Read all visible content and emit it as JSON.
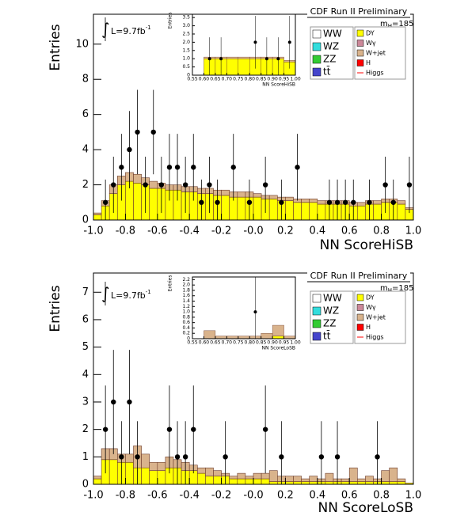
{
  "chart_data": [
    {
      "type": "stacked-histogram",
      "title": "CDF Run II Preliminary",
      "xlabel": "NN ScoreHiSB",
      "ylabel": "Entries",
      "mass_label": {
        "main": "m",
        "sub": "H",
        "rest": "=185"
      },
      "lumi": {
        "symbol": "∫",
        "main": "L=9.7fb",
        "sup": "-1"
      },
      "bins": [
        -1,
        -0.95,
        -0.9,
        -0.85,
        -0.8,
        -0.75,
        -0.7,
        -0.65,
        -0.6,
        -0.55,
        -0.5,
        -0.45,
        -0.4,
        -0.35,
        -0.3,
        -0.25,
        -0.2,
        -0.15,
        -0.1,
        -0.05,
        0,
        0.05,
        0.1,
        0.15,
        0.2,
        0.25,
        0.3,
        0.35,
        0.4,
        0.45,
        0.5,
        0.55,
        0.6,
        0.65,
        0.7,
        0.75,
        0.8,
        0.85,
        0.9,
        0.95,
        1
      ],
      "series": [
        {
          "color": "#ffff00",
          "values": [
            0.3,
            0.8,
            1.5,
            2.0,
            2.2,
            2.1,
            2.0,
            1.8,
            1.8,
            1.7,
            1.7,
            1.6,
            1.6,
            1.5,
            1.5,
            1.4,
            1.4,
            1.3,
            1.3,
            1.3,
            1.3,
            1.2,
            1.2,
            1.1,
            1.1,
            1.0,
            1.0,
            1.0,
            0.9,
            0.9,
            0.9,
            0.9,
            0.8,
            0.8,
            0.9,
            0.9,
            1.0,
            1.0,
            0.9,
            0.6
          ]
        },
        {
          "color": "#d9b38c",
          "values": [
            0.1,
            0.3,
            0.5,
            0.5,
            0.5,
            0.5,
            0.4,
            0.4,
            0.3,
            0.3,
            0.3,
            0.3,
            0.3,
            0.3,
            0.3,
            0.3,
            0.3,
            0.3,
            0.3,
            0.3,
            0.2,
            0.2,
            0.2,
            0.2,
            0.2,
            0.2,
            0.2,
            0.2,
            0.2,
            0.2,
            0.2,
            0.2,
            0.2,
            0.2,
            0.2,
            0.2,
            0.2,
            0.2,
            0.2,
            0.1
          ]
        }
      ],
      "points": {
        "x": [
          -0.925,
          -0.875,
          -0.825,
          -0.775,
          -0.725,
          -0.675,
          -0.625,
          -0.575,
          -0.525,
          -0.475,
          -0.425,
          -0.375,
          -0.325,
          -0.275,
          -0.225,
          -0.125,
          -0.025,
          0.075,
          0.175,
          0.275,
          0.475,
          0.525,
          0.575,
          0.625,
          0.725,
          0.825,
          0.875,
          0.975
        ],
        "values": [
          1,
          2,
          3,
          4,
          5,
          2,
          5,
          2,
          3,
          3,
          2,
          3,
          1,
          2,
          1,
          3,
          1,
          2,
          1,
          3,
          1,
          1,
          1,
          1,
          1,
          2,
          1,
          2
        ],
        "errors": [
          1.3,
          1.6,
          1.9,
          2.2,
          2.4,
          1.6,
          2.4,
          1.6,
          1.9,
          1.9,
          1.6,
          1.9,
          1.3,
          1.6,
          1.3,
          1.9,
          1.3,
          1.6,
          1.3,
          1.9,
          1.3,
          1.3,
          1.3,
          1.3,
          1.3,
          1.6,
          1.3,
          1.6
        ]
      },
      "legend": [
        "WW",
        "WZ",
        "ZZ",
        "tt̄",
        "DY",
        "Wγ",
        "W+jet",
        "H",
        "Higgs"
      ],
      "legend_colors": [
        "#ffffff",
        "#33dddd",
        "#33cc33",
        "#4444cc",
        "#ffff00",
        "#cc8899",
        "#d9b38c",
        "#ff0000",
        "#ff0000"
      ],
      "xlim": [
        -1,
        1
      ],
      "ylim": [
        0,
        11.7
      ],
      "xticks": [
        {
          "value": -1,
          "label": "-1.0"
        },
        -0.8,
        -0.6,
        -0.4,
        -0.2,
        {
          "value": 0,
          "label": "-0.0"
        },
        0.2,
        0.4,
        0.6,
        0.8,
        {
          "value": 1,
          "label": "1.0"
        }
      ],
      "yticks": [
        0,
        2,
        4,
        6,
        8,
        10
      ]
    },
    {
      "type": "stacked-histogram",
      "xlabel": "NN ScoreHiSB",
      "ylabel": "Entries",
      "bins": [
        0.55,
        0.6,
        0.65,
        0.7,
        0.75,
        0.8,
        0.85,
        0.9,
        0.95,
        1
      ],
      "series": [
        {
          "color": "#ffff00",
          "values": [
            0,
            1.0,
            1.0,
            1.0,
            1.0,
            1.0,
            1.0,
            1.0,
            0.8
          ]
        },
        {
          "color": "#d9b38c",
          "values": [
            0,
            0.1,
            0.1,
            0.1,
            0.1,
            0.1,
            0.1,
            0.1,
            0.1
          ]
        }
      ],
      "points": {
        "x": [
          0.625,
          0.675,
          0.825,
          0.875,
          0.925,
          0.975
        ],
        "values": [
          1,
          1,
          2,
          1,
          1,
          2
        ],
        "errors": [
          1.3,
          1.3,
          1.6,
          1.3,
          1.3,
          1.6
        ]
      },
      "xlim": [
        0.55,
        1
      ],
      "ylim": [
        0,
        3.7
      ],
      "xticks": [
        0.55,
        {
          "value": 0.6,
          "label": "0.60"
        },
        0.65,
        {
          "value": 0.7,
          "label": "0.70"
        },
        0.75,
        {
          "value": 0.8,
          "label": "0.80"
        },
        0.85,
        {
          "value": 0.9,
          "label": "0.90"
        },
        0.95,
        {
          "value": 1,
          "label": "1.00"
        }
      ],
      "yticks": [
        0,
        0.5,
        {
          "value": 1,
          "label": "1.0"
        },
        1.5,
        {
          "value": 2,
          "label": "2.0"
        },
        2.5,
        {
          "value": 3,
          "label": "3.0"
        },
        3.5
      ]
    },
    {
      "type": "stacked-histogram",
      "title": "CDF Run II Preliminary",
      "xlabel": "NN ScoreLoSB",
      "ylabel": "Entries",
      "mass_label": {
        "main": "m",
        "sub": "H",
        "rest": "=185"
      },
      "lumi": {
        "symbol": "∫",
        "main": "L=9.7fb",
        "sup": "-1"
      },
      "bins": [
        -1,
        -0.95,
        -0.9,
        -0.85,
        -0.8,
        -0.75,
        -0.7,
        -0.65,
        -0.6,
        -0.55,
        -0.5,
        -0.45,
        -0.4,
        -0.35,
        -0.3,
        -0.25,
        -0.2,
        -0.15,
        -0.1,
        -0.05,
        0,
        0.05,
        0.1,
        0.15,
        0.2,
        0.25,
        0.3,
        0.35,
        0.4,
        0.45,
        0.5,
        0.55,
        0.6,
        0.65,
        0.7,
        0.75,
        0.8,
        0.85,
        0.9,
        0.95,
        1
      ],
      "series": [
        {
          "color": "#ffff00",
          "values": [
            0.2,
            0.9,
            0.9,
            0.8,
            0.8,
            0.6,
            0.6,
            0.5,
            0.5,
            0.6,
            0.6,
            0.5,
            0.5,
            0.4,
            0.3,
            0.3,
            0.3,
            0.2,
            0.2,
            0.2,
            0.2,
            0.2,
            0.1,
            0.1,
            0.1,
            0.1,
            0.1,
            0.1,
            0.1,
            0.1,
            0.1,
            0.1,
            0.1,
            0.1,
            0.1,
            0.1,
            0.1,
            0.1,
            0.1,
            0.05
          ]
        },
        {
          "color": "#d9b38c",
          "values": [
            0.1,
            0.4,
            0.4,
            0.3,
            0.3,
            0.8,
            0.5,
            0.3,
            0.3,
            0.4,
            0.3,
            0.3,
            0.2,
            0.2,
            0.3,
            0.2,
            0.1,
            0.1,
            0.2,
            0.1,
            0.2,
            0.2,
            0.4,
            0.2,
            0.2,
            0.2,
            0.1,
            0.2,
            0.1,
            0.3,
            0.1,
            0.1,
            0.5,
            0.1,
            0.2,
            0.1,
            0.4,
            0.5,
            0.1,
            0.0
          ]
        }
      ],
      "points": {
        "x": [
          -0.925,
          -0.875,
          -0.825,
          -0.775,
          -0.725,
          -0.525,
          -0.475,
          -0.425,
          -0.375,
          -0.175,
          0.075,
          0.175,
          0.425,
          0.525,
          0.775
        ],
        "values": [
          2,
          3,
          1,
          3,
          1,
          2,
          1,
          1,
          2,
          1,
          2,
          1,
          1,
          1,
          1
        ],
        "errors": [
          1.6,
          1.9,
          1.3,
          1.9,
          1.3,
          1.6,
          1.3,
          1.3,
          1.6,
          1.3,
          1.6,
          1.3,
          1.3,
          1.3,
          1.3
        ]
      },
      "legend": [
        "WW",
        "WZ",
        "ZZ",
        "tt̄",
        "DY",
        "Wγ",
        "W+jet",
        "H",
        "Higgs"
      ],
      "legend_colors": [
        "#ffffff",
        "#33dddd",
        "#33cc33",
        "#4444cc",
        "#ffff00",
        "#cc8899",
        "#d9b38c",
        "#ff0000",
        "#ff0000"
      ],
      "xlim": [
        -1,
        1
      ],
      "ylim": [
        0,
        7.7
      ],
      "xticks": [
        {
          "value": -1,
          "label": "-1.0"
        },
        -0.8,
        -0.6,
        -0.4,
        -0.2,
        {
          "value": 0,
          "label": "-0.0"
        },
        0.2,
        0.4,
        0.6,
        0.8,
        {
          "value": 1,
          "label": "1.0"
        }
      ],
      "yticks": [
        0,
        1,
        2,
        3,
        4,
        5,
        6,
        7
      ]
    },
    {
      "type": "stacked-histogram",
      "xlabel": "NN ScoreLoSB",
      "ylabel": "Entries",
      "bins": [
        0.55,
        0.6,
        0.65,
        0.7,
        0.75,
        0.8,
        0.85,
        0.9,
        0.95,
        1
      ],
      "series": [
        {
          "color": "#ffff00",
          "values": [
            0,
            0,
            0,
            0,
            0,
            0,
            0,
            0.1,
            0
          ]
        },
        {
          "color": "#d9b38c",
          "values": [
            0,
            0.3,
            0.1,
            0.1,
            0.1,
            0.1,
            0.2,
            0.4,
            0.1
          ]
        }
      ],
      "points": {
        "x": [
          0.825
        ],
        "values": [
          1
        ],
        "errors": [
          1.3
        ]
      },
      "xlim": [
        0.55,
        1
      ],
      "ylim": [
        0,
        2.3
      ],
      "xticks": [
        0.55,
        {
          "value": 0.6,
          "label": "0.60"
        },
        0.65,
        {
          "value": 0.7,
          "label": "0.70"
        },
        0.75,
        {
          "value": 0.8,
          "label": "0.80"
        },
        0.85,
        {
          "value": 0.9,
          "label": "0.90"
        },
        0.95,
        {
          "value": 1,
          "label": "1.00"
        }
      ],
      "yticks": [
        0,
        0.2,
        0.4,
        0.6,
        0.8,
        {
          "value": 1,
          "label": "1.0"
        },
        1.2,
        1.4,
        1.6,
        1.8,
        {
          "value": 2,
          "label": "2.0"
        },
        2.2
      ]
    }
  ]
}
